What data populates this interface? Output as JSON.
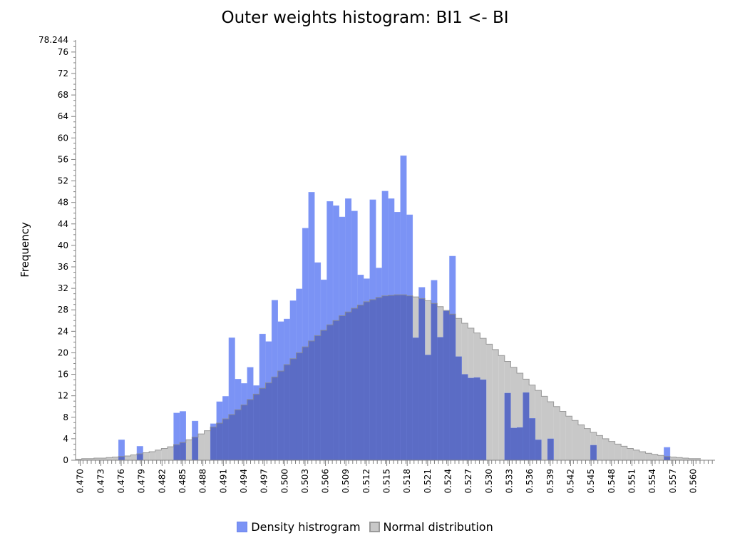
{
  "chart_data": {
    "type": "bar",
    "title": "Outer weights histogram: BI1 <- BI",
    "ylabel": "Frequency",
    "xlabel": "",
    "ylim": [
      0,
      78.244
    ],
    "xlim": [
      0.4693,
      0.5632
    ],
    "bin_width": 0.0009,
    "y_tick_labels": [
      "78.244",
      "76",
      "72",
      "68",
      "64",
      "60",
      "56",
      "52",
      "48",
      "44",
      "40",
      "36",
      "32",
      "28",
      "24",
      "20",
      "16",
      "12",
      "8",
      "4",
      "0"
    ],
    "x_tick_labels": [
      "0.470",
      "0.473",
      "0.476",
      "0.479",
      "0.482",
      "0.485",
      "0.488",
      "0.491",
      "0.494",
      "0.497",
      "0.500",
      "0.503",
      "0.506",
      "0.509",
      "0.512",
      "0.515",
      "0.518",
      "0.521",
      "0.524",
      "0.527",
      "0.530",
      "0.533",
      "0.536",
      "0.539",
      "0.542",
      "0.545",
      "0.548",
      "0.551",
      "0.554",
      "0.557",
      "0.560"
    ],
    "legend": [
      "Density histrogram",
      "Normal distribution"
    ],
    "legend_position": "bottom",
    "grid": false,
    "colors": {
      "density": "#7b93f5",
      "normal": "#c8c8c8",
      "overlap": "#5b6cc5"
    },
    "series": [
      {
        "name": "Density histrogram",
        "x_start": 0.4693,
        "values": [
          0,
          0,
          0,
          0,
          0,
          0,
          0,
          3.8,
          0,
          0,
          2.6,
          0,
          0,
          0,
          0,
          0,
          8.8,
          9.1,
          0,
          7.3,
          0,
          0,
          6.8,
          10.9,
          11.9,
          22.8,
          15.1,
          14.3,
          17.3,
          13.9,
          23.5,
          22.1,
          29.8,
          25.8,
          26.3,
          29.7,
          31.9,
          43.2,
          49.9,
          36.8,
          33.6,
          48.2,
          47.4,
          45.3,
          48.7,
          46.4,
          34.5,
          33.8,
          48.5,
          35.8,
          50.1,
          48.7,
          46.2,
          56.7,
          45.7,
          22.8,
          32.2,
          19.6,
          33.5,
          22.9,
          27.8,
          38.0,
          19.3,
          16.0,
          15.3,
          15.4,
          15.0,
          0,
          0,
          0,
          12.5,
          6.0,
          6.1,
          12.6,
          7.8,
          3.8,
          0,
          4.0,
          0,
          0,
          0,
          0,
          0,
          0,
          2.8,
          0,
          0,
          0,
          0,
          0,
          0,
          0,
          0,
          0,
          0,
          0,
          2.4
        ],
        "color": "#7b93f5"
      },
      {
        "name": "Normal distribution",
        "x_start": 0.4693,
        "values": [
          0.2,
          0.3,
          0.3,
          0.4,
          0.4,
          0.5,
          0.6,
          0.7,
          0.8,
          1.0,
          1.2,
          1.4,
          1.6,
          1.9,
          2.2,
          2.5,
          2.9,
          3.3,
          3.8,
          4.3,
          4.9,
          5.5,
          6.2,
          6.9,
          7.7,
          8.5,
          9.4,
          10.3,
          11.3,
          12.3,
          13.4,
          14.4,
          15.5,
          16.6,
          17.8,
          18.9,
          20.0,
          21.1,
          22.2,
          23.2,
          24.2,
          25.2,
          26.0,
          26.9,
          27.6,
          28.3,
          28.9,
          29.5,
          29.9,
          30.3,
          30.6,
          30.7,
          30.8,
          30.8,
          30.6,
          30.4,
          30.1,
          29.7,
          29.2,
          28.6,
          27.9,
          27.2,
          26.4,
          25.5,
          24.6,
          23.7,
          22.7,
          21.6,
          20.6,
          19.5,
          18.4,
          17.3,
          16.2,
          15.1,
          14.0,
          13.0,
          11.9,
          10.9,
          10.0,
          9.1,
          8.2,
          7.4,
          6.6,
          5.9,
          5.2,
          4.6,
          4.0,
          3.5,
          3.0,
          2.6,
          2.2,
          1.9,
          1.6,
          1.3,
          1.1,
          0.9,
          0.7,
          0.6,
          0.5,
          0.4,
          0.3,
          0.3
        ],
        "color": "#c8c8c8"
      }
    ]
  }
}
